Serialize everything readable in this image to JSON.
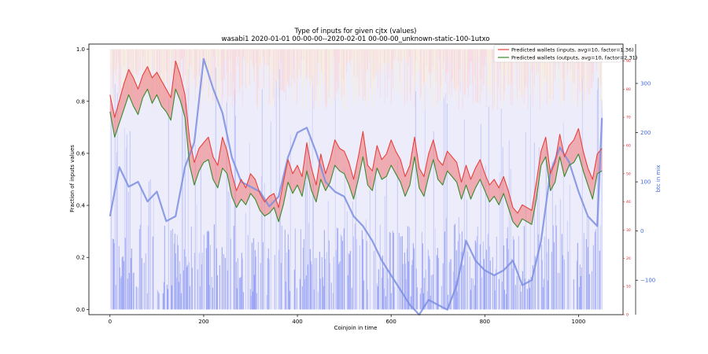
{
  "chart_data": {
    "type": "line",
    "title": "Type of inputs for given cjtx (values)",
    "subtitle": "wasabi1 2020-01-01 00-00-00--2020-02-01 00-00-00_unknown-static-100-1utxo",
    "xlabel": "Coinjoin in time",
    "ylabel": "Fraction of inputs values",
    "y2label": "btc in mix",
    "xlim": [
      -45,
      1095
    ],
    "ylim": [
      -0.02,
      1.02
    ],
    "y_right_red_lim": [
      0,
      96
    ],
    "y_right_blue_lim": [
      -170,
      380
    ],
    "x_ticks": [
      0,
      200,
      400,
      600,
      800,
      1000
    ],
    "y_ticks": [
      0.0,
      0.2,
      0.4,
      0.6,
      0.8,
      1.0
    ],
    "y_right_red_ticks": [
      0,
      10,
      20,
      30,
      40,
      50,
      60,
      70,
      80,
      90
    ],
    "y_right_blue_ticks": [
      -100,
      0,
      100,
      200,
      300
    ],
    "legend_position": "top-right",
    "colors": {
      "inputs_line": "#e8413c",
      "outputs_line": "#3a8a2e",
      "band_fill": "#f08080",
      "btc_line": "#7b8ee0",
      "bars_light": "#dcdcf8",
      "bars_dark": "#6f7ff0",
      "bars_top_pink": "#ffd0d0",
      "bars_top_yellow": "#fff3c8"
    },
    "series": [
      {
        "name": "Predicted wallets (inputs, avg=10, factor=1.36)",
        "axis": "right-red",
        "x": [
          0,
          10,
          20,
          30,
          40,
          50,
          60,
          70,
          80,
          90,
          100,
          110,
          120,
          130,
          140,
          150,
          160,
          170,
          180,
          190,
          200,
          210,
          220,
          230,
          240,
          250,
          260,
          270,
          280,
          290,
          300,
          310,
          320,
          330,
          340,
          350,
          360,
          370,
          380,
          390,
          400,
          410,
          420,
          430,
          440,
          450,
          460,
          470,
          480,
          490,
          500,
          510,
          520,
          530,
          540,
          550,
          560,
          570,
          580,
          590,
          600,
          610,
          620,
          630,
          640,
          650,
          660,
          670,
          680,
          690,
          700,
          710,
          720,
          730,
          740,
          750,
          760,
          770,
          780,
          790,
          800,
          810,
          820,
          830,
          840,
          850,
          860,
          870,
          880,
          890,
          900,
          910,
          920,
          930,
          940,
          950,
          960,
          970,
          980,
          990,
          1000,
          1010,
          1020,
          1030,
          1040,
          1050
        ],
        "values": [
          78,
          70,
          76,
          82,
          87,
          84,
          80,
          85,
          88,
          84,
          86,
          83,
          80,
          77,
          90,
          85,
          78,
          62,
          54,
          59,
          61,
          63,
          56,
          53,
          63,
          58,
          50,
          44,
          48,
          45,
          50,
          48,
          43,
          40,
          42,
          43,
          38,
          47,
          55,
          50,
          53,
          49,
          61,
          52,
          46,
          57,
          50,
          55,
          62,
          59,
          58,
          54,
          48,
          56,
          65,
          53,
          51,
          60,
          55,
          57,
          62,
          58,
          55,
          49,
          53,
          63,
          52,
          49,
          57,
          62,
          55,
          53,
          58,
          56,
          54,
          47,
          53,
          48,
          52,
          55,
          50,
          46,
          48,
          45,
          49,
          44,
          38,
          36,
          39,
          38,
          37,
          47,
          58,
          63,
          50,
          54,
          64,
          56,
          60,
          62,
          66,
          58,
          52,
          48,
          57,
          59
        ]
      },
      {
        "name": "Predicted wallets (outputs, avg=10, factor=2.31)",
        "axis": "right-red",
        "x": [
          0,
          10,
          20,
          30,
          40,
          50,
          60,
          70,
          80,
          90,
          100,
          110,
          120,
          130,
          140,
          150,
          160,
          170,
          180,
          190,
          200,
          210,
          220,
          230,
          240,
          250,
          260,
          270,
          280,
          290,
          300,
          310,
          320,
          330,
          340,
          350,
          360,
          370,
          380,
          390,
          400,
          410,
          420,
          430,
          440,
          450,
          460,
          470,
          480,
          490,
          500,
          510,
          520,
          530,
          540,
          550,
          560,
          570,
          580,
          590,
          600,
          610,
          620,
          630,
          640,
          650,
          660,
          670,
          680,
          690,
          700,
          710,
          720,
          730,
          740,
          750,
          760,
          770,
          780,
          790,
          800,
          810,
          820,
          830,
          840,
          850,
          860,
          870,
          880,
          890,
          900,
          910,
          920,
          930,
          940,
          950,
          960,
          970,
          980,
          990,
          1000,
          1010,
          1020,
          1030,
          1040,
          1050
        ],
        "values": [
          72,
          63,
          68,
          73,
          78,
          74,
          71,
          77,
          80,
          75,
          78,
          74,
          72,
          69,
          80,
          76,
          70,
          53,
          46,
          51,
          54,
          55,
          48,
          45,
          52,
          50,
          42,
          38,
          41,
          39,
          43,
          41,
          37,
          35,
          36,
          38,
          33,
          39,
          47,
          43,
          46,
          42,
          51,
          44,
          40,
          48,
          44,
          47,
          53,
          51,
          50,
          46,
          41,
          48,
          56,
          46,
          44,
          52,
          48,
          49,
          53,
          50,
          47,
          42,
          46,
          56,
          45,
          42,
          49,
          55,
          48,
          46,
          51,
          49,
          47,
          41,
          46,
          41,
          45,
          48,
          44,
          40,
          42,
          39,
          43,
          38,
          33,
          31,
          34,
          33,
          32,
          41,
          53,
          56,
          44,
          47,
          56,
          49,
          53,
          54,
          57,
          51,
          46,
          41,
          50,
          51
        ]
      },
      {
        "name": "btc in mix",
        "axis": "right-blue",
        "x": [
          0,
          20,
          40,
          60,
          80,
          100,
          120,
          140,
          160,
          180,
          200,
          220,
          240,
          260,
          280,
          300,
          320,
          340,
          360,
          380,
          400,
          420,
          440,
          460,
          480,
          500,
          520,
          540,
          560,
          580,
          600,
          620,
          640,
          660,
          680,
          700,
          720,
          740,
          760,
          780,
          800,
          820,
          840,
          860,
          880,
          900,
          920,
          940,
          960,
          980,
          1000,
          1020,
          1040,
          1050
        ],
        "values": [
          30,
          130,
          90,
          100,
          60,
          80,
          20,
          30,
          130,
          180,
          350,
          290,
          240,
          150,
          100,
          90,
          80,
          50,
          70,
          150,
          200,
          210,
          160,
          100,
          80,
          70,
          30,
          10,
          -20,
          -60,
          -90,
          -120,
          -150,
          -170,
          -140,
          -150,
          -160,
          -110,
          -20,
          -60,
          -80,
          -90,
          -80,
          -60,
          -110,
          -100,
          -20,
          120,
          170,
          140,
          80,
          30,
          10,
          230
        ]
      }
    ]
  }
}
